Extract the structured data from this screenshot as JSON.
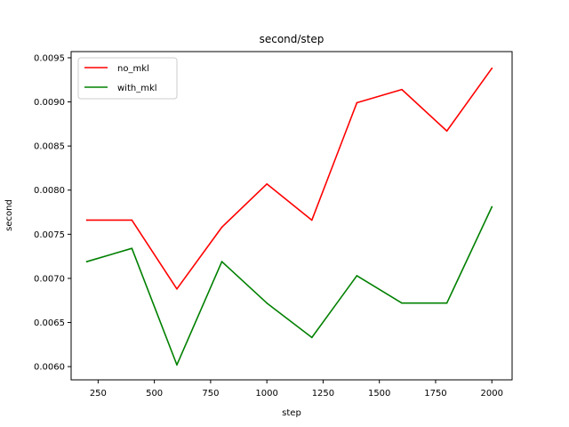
{
  "chart_data": {
    "type": "line",
    "title": "second/step",
    "xlabel": "step",
    "ylabel": "second",
    "x": [
      200,
      400,
      600,
      800,
      1000,
      1200,
      1400,
      1600,
      1800,
      2000
    ],
    "xlim": [
      130,
      2090
    ],
    "ylim": [
      0.00585,
      0.00957
    ],
    "xticks": [
      250,
      500,
      750,
      1000,
      1250,
      1500,
      1750,
      2000
    ],
    "yticks": [
      0.006,
      0.0065,
      0.007,
      0.0075,
      0.008,
      0.0085,
      0.009,
      0.0095
    ],
    "xtick_labels": [
      "250",
      "500",
      "750",
      "1000",
      "1250",
      "1500",
      "1750",
      "2000"
    ],
    "ytick_labels": [
      "0.0060",
      "0.0065",
      "0.0070",
      "0.0075",
      "0.0080",
      "0.0085",
      "0.0090",
      "0.0095"
    ],
    "grid": false,
    "legend_position": "top-left",
    "series": [
      {
        "name": "no_mkl",
        "color": "#ff0000",
        "values": [
          0.00766,
          0.00766,
          0.00688,
          0.00758,
          0.00807,
          0.00766,
          0.00899,
          0.00914,
          0.00867,
          0.00938
        ]
      },
      {
        "name": "with_mkl",
        "color": "#008000",
        "values": [
          0.00719,
          0.00734,
          0.00602,
          0.00719,
          0.00672,
          0.00633,
          0.00703,
          0.00672,
          0.00672,
          0.00781
        ]
      }
    ]
  }
}
